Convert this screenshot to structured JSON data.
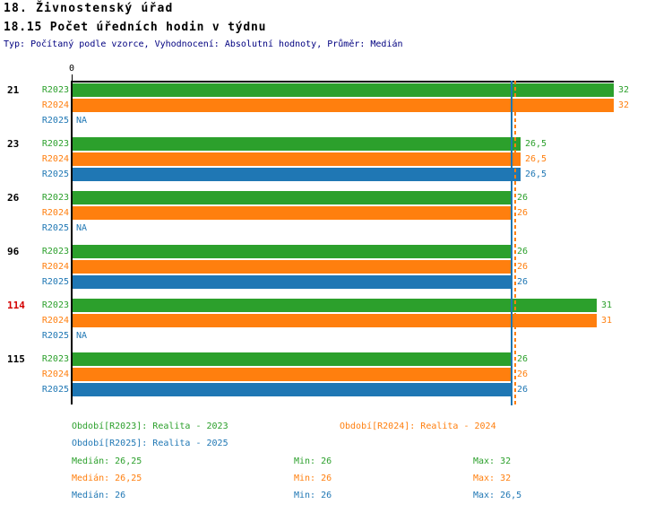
{
  "header": {
    "title": "18. Živnostenský úřad",
    "subtitle": "18.15 Počet úředních hodin v týdnu",
    "meta": "Typ: Počítaný podle vzorce, Vyhodnocení: Absolutní hodnoty, Průměr: Medián"
  },
  "colors": {
    "series": {
      "R2023": "#2CA02C",
      "R2024": "#FF7F0E",
      "R2025": "#1F77B4"
    },
    "group_label": "#000000",
    "group_label_highlight": "#D40000",
    "meta_text": "#000080",
    "axis": "#000000"
  },
  "chart_data": {
    "type": "bar",
    "orientation": "horizontal",
    "axis": {
      "tick_label": "0",
      "min": 0,
      "max": 32,
      "grid": false
    },
    "series": [
      "R2023",
      "R2024",
      "R2025"
    ],
    "na_label": "NA",
    "groups": [
      {
        "label": "21",
        "highlight": false,
        "values": [
          32,
          32,
          null
        ],
        "display": [
          "32",
          "32",
          "NA"
        ]
      },
      {
        "label": "23",
        "highlight": false,
        "values": [
          26.5,
          26.5,
          26.5
        ],
        "display": [
          "26,5",
          "26,5",
          "26,5"
        ]
      },
      {
        "label": "26",
        "highlight": false,
        "values": [
          26,
          26,
          null
        ],
        "display": [
          "26",
          "26",
          "NA"
        ]
      },
      {
        "label": "96",
        "highlight": false,
        "values": [
          26,
          26,
          26
        ],
        "display": [
          "26",
          "26",
          "26"
        ]
      },
      {
        "label": "114",
        "highlight": true,
        "values": [
          31,
          31,
          null
        ],
        "display": [
          "31",
          "31",
          "NA"
        ]
      },
      {
        "label": "115",
        "highlight": false,
        "values": [
          26,
          26,
          26
        ],
        "display": [
          "26",
          "26",
          "26"
        ]
      }
    ],
    "median_lines": [
      {
        "series": "R2023",
        "value": 26.25,
        "style": "dashed"
      },
      {
        "series": "R2024",
        "value": 26.25,
        "style": "dashed"
      },
      {
        "series": "R2025",
        "value": 26,
        "style": "solid"
      }
    ]
  },
  "legend": {
    "items": [
      {
        "series": "R2023",
        "text": "Období[R2023]: Realita - 2023",
        "row": 0,
        "col": 0
      },
      {
        "series": "R2024",
        "text": "Období[R2024]: Realita - 2024",
        "row": 0,
        "col": 1
      },
      {
        "series": "R2025",
        "text": "Období[R2025]: Realita - 2025",
        "row": 1,
        "col": 0
      }
    ]
  },
  "stats": {
    "rows": [
      {
        "series": "R2023",
        "median": "Medián: 26,25",
        "min": "Min: 26",
        "max": "Max: 32"
      },
      {
        "series": "R2024",
        "median": "Medián: 26,25",
        "min": "Min: 26",
        "max": "Max: 32"
      },
      {
        "series": "R2025",
        "median": "Medián: 26",
        "min": "Min: 26",
        "max": "Max: 26,5"
      }
    ]
  }
}
